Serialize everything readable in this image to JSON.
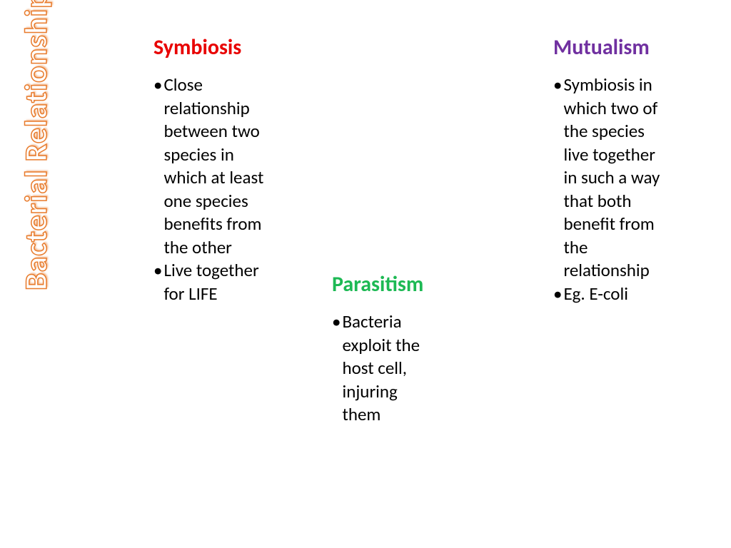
{
  "page_title": "Bacterial Relationships",
  "title_color_stroke": "#e87b2c",
  "title_color_fill": "#ffffff",
  "background_color": "#ffffff",
  "body_text_color": "#000000",
  "title_fontsize": 44,
  "heading_fontsize": 30,
  "body_fontsize": 25,
  "sections": {
    "symbiosis": {
      "title": "Symbiosis",
      "title_color": "#e80000",
      "bullets": [
        "Close relationship between two species in which at least one species benefits from the other",
        "Live together for LIFE"
      ]
    },
    "parasitism": {
      "title": "Parasitism",
      "title_color": "#1db954",
      "bullets": [
        "Bacteria exploit the host cell, injuring them"
      ]
    },
    "mutualism": {
      "title": "Mutualism",
      "title_color": "#7030a0",
      "bullets": [
        "Symbiosis in which two of the species live together in such a way that both benefit from the relationship",
        "Eg. E-coli"
      ]
    }
  }
}
